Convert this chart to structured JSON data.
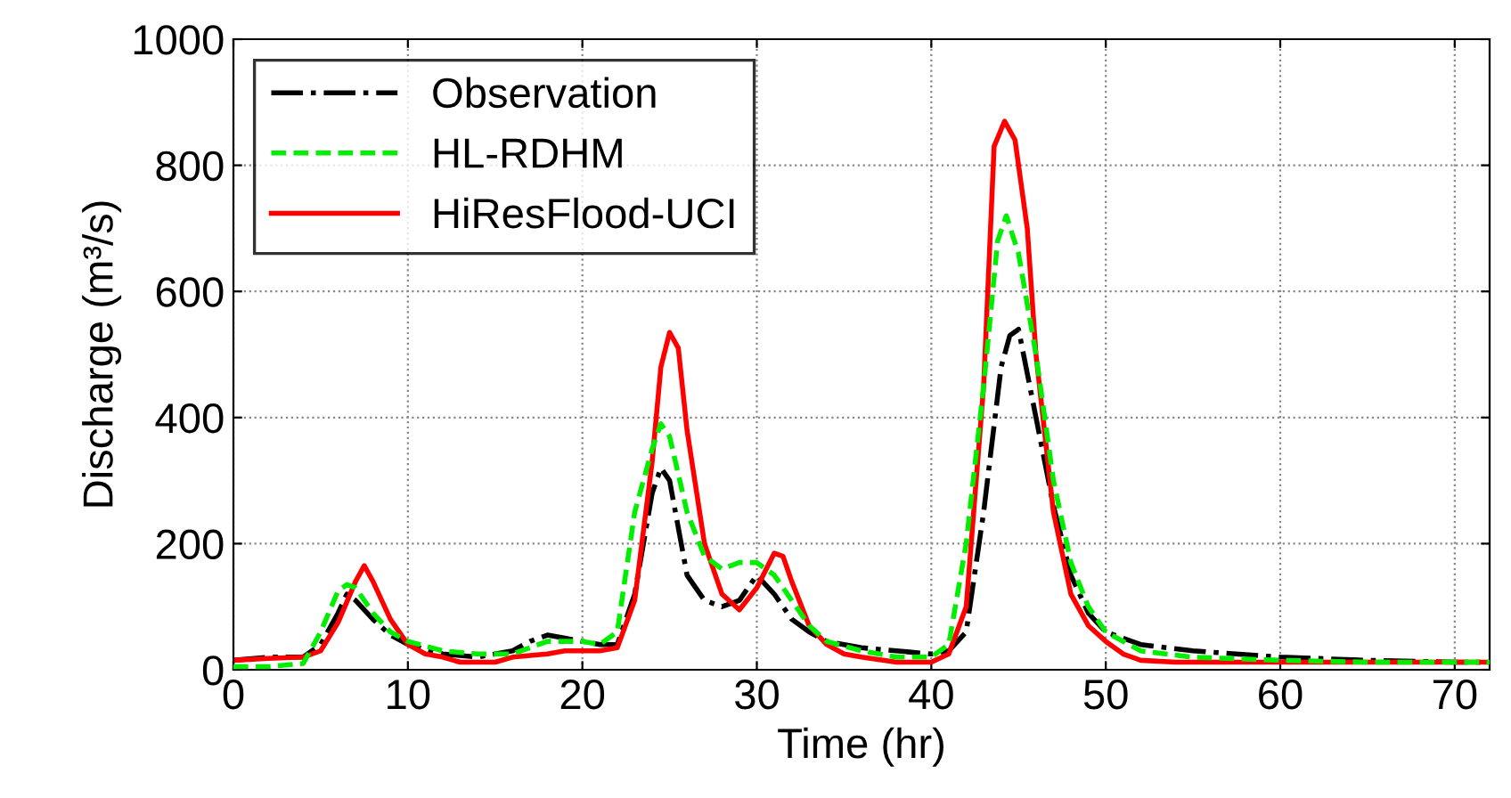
{
  "chart_data": {
    "type": "line",
    "xlabel": "Time (hr)",
    "ylabel": "Discharge (m³/s)",
    "xlim": [
      0,
      72
    ],
    "ylim": [
      0,
      1000
    ],
    "xticks": [
      0,
      10,
      20,
      30,
      40,
      50,
      60,
      70
    ],
    "yticks": [
      0,
      200,
      400,
      600,
      800,
      1000
    ],
    "grid": true,
    "legend": "top left",
    "marker": "none",
    "series": [
      {
        "name": "Observation",
        "color": "#000000",
        "line_style": "dashdot",
        "x": [
          0,
          2,
          4,
          5,
          6,
          6.5,
          7,
          8,
          9,
          10,
          12,
          14,
          16,
          17,
          18,
          19,
          20,
          21,
          22,
          23,
          24,
          24.5,
          25,
          26,
          27,
          28,
          29,
          30,
          31,
          32,
          33,
          34,
          36,
          38,
          40,
          41,
          42,
          43,
          44,
          44.5,
          45,
          46,
          47,
          48,
          49,
          50,
          52,
          55,
          60,
          65,
          70,
          72
        ],
        "values": [
          15,
          20,
          20,
          40,
          90,
          120,
          110,
          80,
          55,
          40,
          25,
          20,
          30,
          45,
          55,
          50,
          45,
          40,
          40,
          120,
          280,
          320,
          300,
          150,
          110,
          100,
          110,
          150,
          120,
          80,
          60,
          45,
          35,
          30,
          25,
          30,
          60,
          250,
          480,
          530,
          540,
          400,
          260,
          150,
          90,
          60,
          40,
          30,
          20,
          15,
          12,
          12
        ]
      },
      {
        "name": "HL-RDHM",
        "color": "#00ee00",
        "line_style": "dashed",
        "x": [
          0,
          2,
          4,
          5,
          6,
          6.5,
          7,
          8,
          9,
          10,
          12,
          14,
          16,
          17,
          18,
          19,
          20,
          21,
          22,
          23,
          24,
          24.5,
          25,
          26,
          27,
          28,
          29,
          30,
          31,
          32,
          33,
          34,
          36,
          38,
          40,
          41,
          42,
          43,
          43.8,
          44.3,
          45,
          46,
          47,
          48,
          49,
          50,
          52,
          55,
          60,
          65,
          70,
          72
        ],
        "values": [
          5,
          5,
          10,
          60,
          125,
          135,
          130,
          90,
          60,
          45,
          30,
          25,
          25,
          35,
          45,
          45,
          45,
          40,
          60,
          250,
          350,
          390,
          370,
          250,
          180,
          160,
          170,
          170,
          150,
          110,
          70,
          45,
          30,
          20,
          20,
          40,
          200,
          450,
          680,
          720,
          660,
          500,
          300,
          170,
          100,
          60,
          30,
          20,
          15,
          12,
          12,
          12
        ]
      },
      {
        "name": "HiResFlood-UCI",
        "color": "#ff0000",
        "line_style": "solid",
        "x": [
          0,
          2,
          4,
          5,
          6,
          7,
          7.5,
          8,
          9,
          10,
          11,
          12,
          13,
          15,
          16,
          18,
          19,
          20,
          21,
          22,
          23,
          24,
          24.5,
          25,
          25.5,
          26,
          27,
          28,
          29,
          30,
          31,
          31.5,
          32,
          33,
          34,
          35,
          36,
          38,
          40,
          41,
          42,
          43,
          43.6,
          44.2,
          44.8,
          45.5,
          46,
          47,
          48,
          49,
          50,
          51,
          52,
          54,
          60,
          70,
          72
        ],
        "values": [
          15,
          18,
          20,
          30,
          75,
          140,
          165,
          140,
          80,
          40,
          25,
          20,
          12,
          12,
          20,
          25,
          30,
          30,
          30,
          35,
          110,
          330,
          480,
          535,
          510,
          380,
          200,
          120,
          95,
          130,
          185,
          180,
          140,
          70,
          40,
          25,
          20,
          12,
          12,
          25,
          100,
          450,
          830,
          870,
          840,
          700,
          500,
          250,
          120,
          70,
          45,
          25,
          15,
          12,
          12,
          12,
          12
        ]
      }
    ]
  }
}
